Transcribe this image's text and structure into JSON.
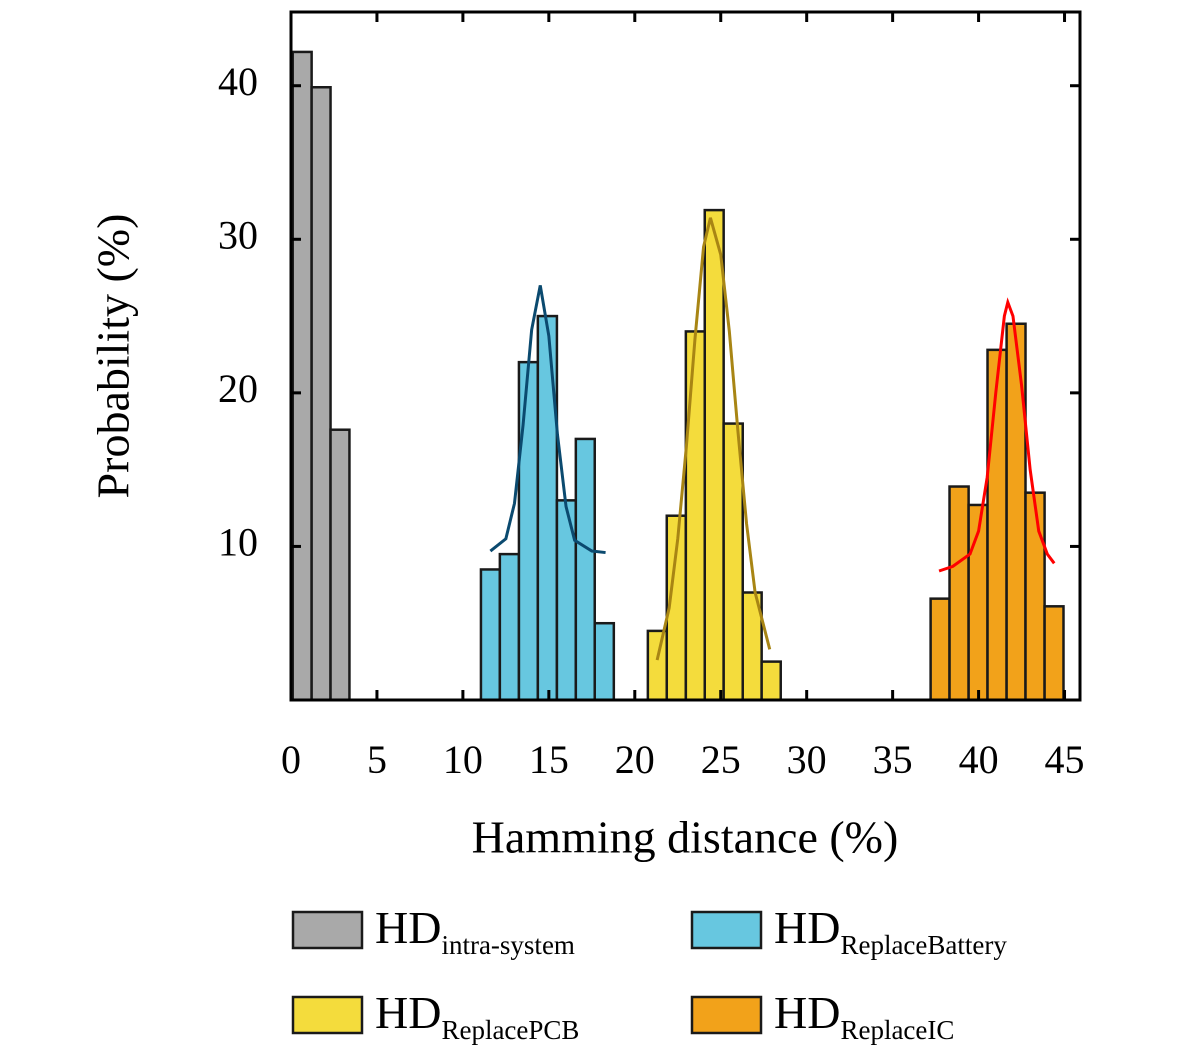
{
  "chart_data": {
    "type": "histogram",
    "xlabel": "Hamming distance (%)",
    "ylabel": "Probability (%)",
    "xlim": [
      0,
      45.9
    ],
    "ylim": [
      0,
      44.8
    ],
    "xticks": [
      0,
      5,
      10,
      15,
      20,
      25,
      30,
      35,
      40,
      45
    ],
    "yticks": [
      10,
      20,
      30,
      40
    ],
    "series": [
      {
        "name": "HD",
        "subscript": "intra-system",
        "color": "#a9a9a9",
        "bins": [
          0.1,
          1.2,
          2.3,
          3.4
        ],
        "values": [
          42.2,
          39.9,
          17.6
        ]
      },
      {
        "name": "HD",
        "subscript": "ReplaceBattery",
        "color": "#67c7e0",
        "bins": [
          11.05,
          12.15,
          13.26,
          14.36,
          15.47,
          16.57,
          17.67,
          18.78
        ],
        "values": [
          8.5,
          9.5,
          22,
          25,
          13,
          17,
          5
        ],
        "fit": {
          "color": "#0b4a6f",
          "x": [
            11.6,
            12.5,
            13.0,
            13.5,
            14.0,
            14.5,
            15.0,
            15.5,
            16.0,
            16.5,
            17.5,
            18.3
          ],
          "values": [
            9.7,
            10.5,
            12.8,
            17.9,
            24.1,
            27.0,
            23.7,
            17.3,
            12.6,
            10.4,
            9.7,
            9.6
          ]
        }
      },
      {
        "name": "HD",
        "subscript": "ReplacePCB",
        "color": "#f4dc3c",
        "bins": [
          20.76,
          21.86,
          22.97,
          24.07,
          25.17,
          26.28,
          27.38,
          28.49
        ],
        "values": [
          4.5,
          12,
          24,
          31.9,
          18,
          7,
          2.5
        ],
        "fit": {
          "color": "#a88514",
          "x": [
            21.3,
            22.0,
            22.5,
            23.0,
            23.5,
            24.0,
            24.4,
            25.0,
            25.5,
            26.0,
            26.5,
            27.0,
            27.85
          ],
          "values": [
            2.6,
            6,
            10.5,
            16.5,
            23.5,
            29.5,
            31.4,
            29,
            24,
            17.5,
            11.5,
            7,
            3.3
          ]
        }
      },
      {
        "name": "HD",
        "subscript": "ReplaceIC",
        "color": "#f2a21a",
        "bins": [
          37.21,
          38.31,
          39.42,
          40.52,
          41.63,
          42.73,
          43.84,
          44.94
        ],
        "values": [
          6.6,
          13.9,
          12.7,
          22.8,
          24.5,
          13.5,
          6.1
        ],
        "fit": {
          "color": "#ff0000",
          "x": [
            37.7,
            38.5,
            39.5,
            40.0,
            40.5,
            41.0,
            41.5,
            41.7,
            42.0,
            42.5,
            43.0,
            43.5,
            44.0,
            44.4
          ],
          "values": [
            8.4,
            8.7,
            9.5,
            11,
            14.5,
            20,
            25,
            25.9,
            25,
            20.5,
            15,
            11,
            9.5,
            8.9
          ]
        }
      }
    ]
  }
}
